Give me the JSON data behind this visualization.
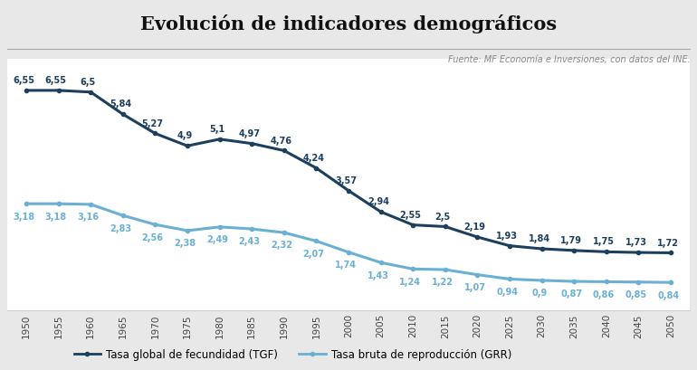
{
  "title": "Evolución de indicadores demográficos",
  "source_text": "Fuente: MF Economía e Inversiones, con datos del INE.",
  "years": [
    1950,
    1955,
    1960,
    1965,
    1970,
    1975,
    1980,
    1985,
    1990,
    1995,
    2000,
    2005,
    2010,
    2015,
    2020,
    2025,
    2030,
    2035,
    2040,
    2045,
    2050
  ],
  "tgf": [
    6.55,
    6.55,
    6.5,
    5.84,
    5.27,
    4.9,
    5.1,
    4.97,
    4.76,
    4.24,
    3.57,
    2.94,
    2.55,
    2.5,
    2.19,
    1.93,
    1.84,
    1.79,
    1.75,
    1.73,
    1.72
  ],
  "grr": [
    3.18,
    3.18,
    3.16,
    2.83,
    2.56,
    2.38,
    2.49,
    2.43,
    2.32,
    2.07,
    1.74,
    1.43,
    1.24,
    1.22,
    1.07,
    0.94,
    0.9,
    0.87,
    0.86,
    0.85,
    0.84
  ],
  "tgf_labels": [
    "6,55",
    "6,55",
    "6,5",
    "5,84",
    "5,27",
    "4,9",
    "5,1",
    "4,97",
    "4,76",
    "4,24",
    "3,57",
    "2,94",
    "2,55",
    "2,5",
    "2,19",
    "1,93",
    "1,84",
    "1,79",
    "1,75",
    "1,73",
    "1,72"
  ],
  "grr_labels": [
    "3,18",
    "3,18",
    "3,16",
    "2,83",
    "2,56",
    "2,38",
    "2,49",
    "2,43",
    "2,32",
    "2,07",
    "1,74",
    "1,43",
    "1,24",
    "1,22",
    "1,07",
    "0,94",
    "0,9",
    "0,87",
    "0,86",
    "0,85",
    "0,84"
  ],
  "tgf_color": "#1c3f5e",
  "grr_color": "#6ab0d4",
  "legend_tgf": "Tasa global de fecundidad (TGF)",
  "legend_grr": "Tasa bruta de reproducción (GRR)",
  "bg_color": "#e8e8e8",
  "plot_bg_color": "#ffffff",
  "title_bg_color": "#e8e8e8",
  "ylim": [
    0.0,
    7.5
  ],
  "title_fontsize": 15,
  "label_fontsize": 7,
  "legend_fontsize": 8.5,
  "source_fontsize": 7,
  "line_width": 2.2,
  "marker_size": 3
}
